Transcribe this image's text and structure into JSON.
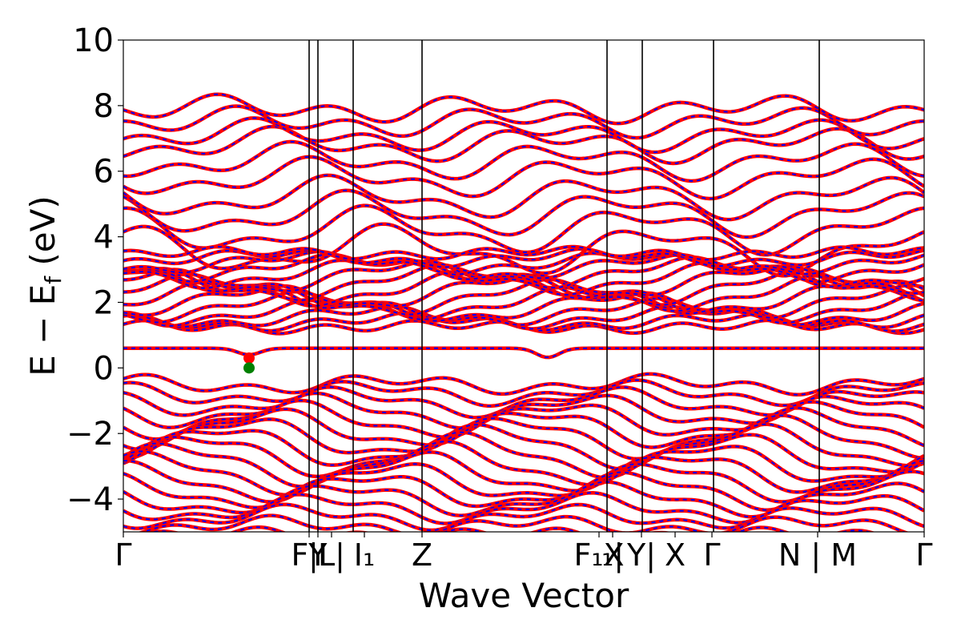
{
  "chart_data": {
    "type": "line",
    "title": "",
    "xlabel": "Wave Vector",
    "ylabel": "E − E_f (eV)",
    "ylabel_parts": {
      "main": "E − E",
      "sub": "f",
      "tail": " (eV)"
    },
    "ylim": [
      -5,
      10
    ],
    "yticks": [
      -4,
      -2,
      0,
      2,
      4,
      6,
      8,
      10
    ],
    "ytick_labels": [
      "−4",
      "−2",
      "0",
      "2",
      "4",
      "6",
      "8",
      "10"
    ],
    "xlim": [
      0,
      1
    ],
    "kpath_ticks": [
      {
        "x": 0.0,
        "label": "Γ"
      },
      {
        "x": 0.232,
        "label": "FY"
      },
      {
        "x": 0.243,
        "label": "|I"
      },
      {
        "x": 0.26,
        "label": "L|"
      },
      {
        "x": 0.301,
        "label": "I₁"
      },
      {
        "x": 0.373,
        "label": "Z"
      },
      {
        "x": 0.594,
        "label": "F₁X"
      },
      {
        "x": 0.611,
        "label": "₁|"
      },
      {
        "x": 0.647,
        "label": "Y|"
      },
      {
        "x": 0.689,
        "label": "X"
      },
      {
        "x": 0.735,
        "label": "Γ"
      },
      {
        "x": 0.867,
        "label": "N | M"
      },
      {
        "x": 1.0,
        "label": "Γ"
      }
    ],
    "vertical_lines_x": [
      0.232,
      0.243,
      0.287,
      0.373,
      0.604,
      0.648,
      0.737,
      0.869
    ],
    "grid": false,
    "legend": "none",
    "series_style": [
      {
        "color": "#ff0000",
        "style": "solid",
        "role": "band structure"
      },
      {
        "color": "#0000ff",
        "style": "dashed",
        "role": "band structure overlay"
      }
    ],
    "flat_band_energy": 0.6,
    "markers": [
      {
        "x": 0.157,
        "y": 0.3,
        "color": "#ff0000"
      },
      {
        "x": 0.157,
        "y": 0.0,
        "color": "#008000"
      }
    ]
  }
}
